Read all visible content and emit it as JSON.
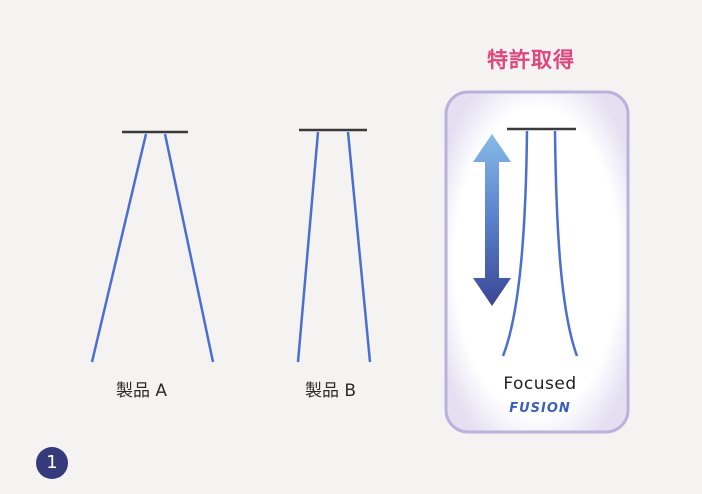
{
  "products": [
    {
      "label": "製品 A"
    },
    {
      "label": "製品 B"
    }
  ],
  "featured": {
    "patent_text": "特許取得",
    "name": "Focused",
    "brand": "FUSION"
  },
  "step_number": "1",
  "colors": {
    "fiber_blue": "#4a6fd0",
    "frame_purple": "#b9b2dc",
    "arrow_light": "#7fb1e0",
    "arrow_dark": "#3b4c9c",
    "patent_pink": "#e0457b",
    "badge_navy": "#343a7a"
  },
  "icons": [
    "double-arrow-icon"
  ]
}
